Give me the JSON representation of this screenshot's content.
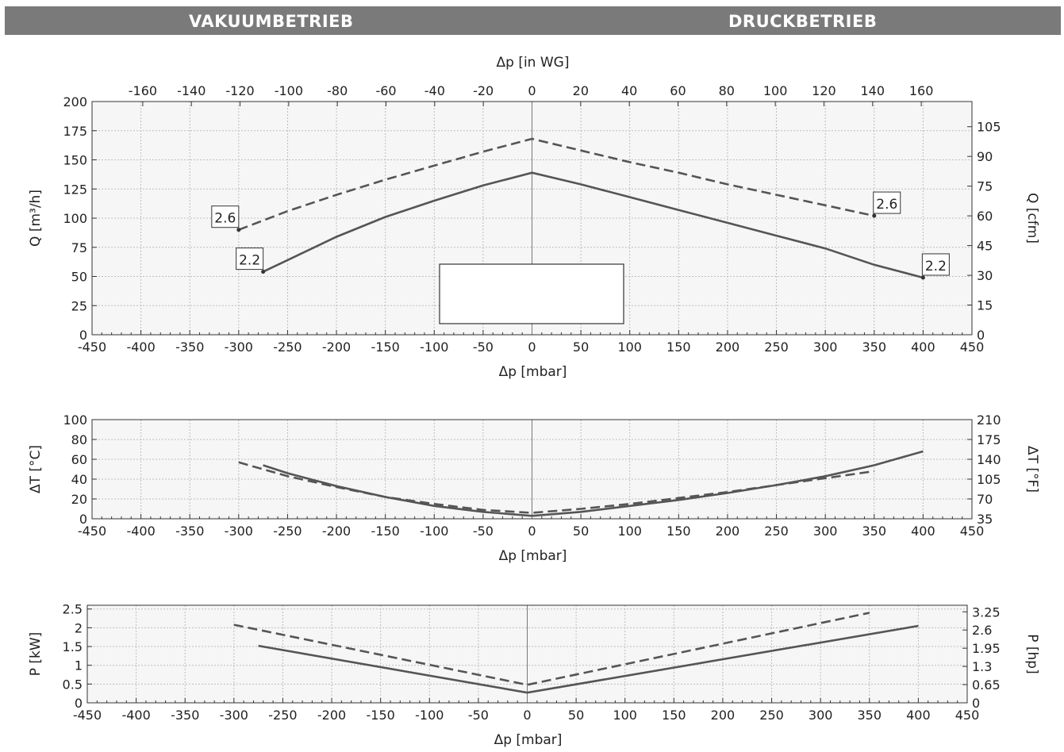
{
  "header": {
    "left_title": "VAKUUMBETRIEB",
    "right_title": "DRUCKBETRIEB"
  },
  "colors": {
    "banner": "#7a7a7a",
    "line": "#555555",
    "plot_bg": "#f6f6f6",
    "grid": "#bdbdbd"
  },
  "chart_data": [
    {
      "type": "line",
      "title": "",
      "xlabel": "Δp [mbar]",
      "ylabel": "Q [m³/h]",
      "xlabel_top": "Δp [in WG]",
      "ylabel_right": "Q [cfm]",
      "xlim": [
        -450,
        450
      ],
      "ylim": [
        0,
        200
      ],
      "x_ticks": [
        -450,
        -400,
        -350,
        -300,
        -250,
        -200,
        -150,
        -100,
        -50,
        0,
        50,
        100,
        150,
        200,
        250,
        300,
        350,
        400,
        450
      ],
      "y_ticks": [
        0,
        25,
        50,
        75,
        100,
        125,
        150,
        175,
        200
      ],
      "top_ticks": [
        -160,
        -140,
        -120,
        -100,
        -80,
        -60,
        -40,
        -20,
        0,
        20,
        40,
        60,
        80,
        100,
        120,
        140,
        160
      ],
      "right_ticks": [
        0,
        15,
        30,
        45,
        60,
        75,
        90,
        105
      ],
      "right_scale_max": 117.7,
      "grid": true,
      "series": [
        {
          "name": "2.6",
          "style": "dashed",
          "x": [
            -300,
            -250,
            -200,
            -150,
            -100,
            -50,
            0,
            50,
            100,
            150,
            200,
            250,
            300,
            350
          ],
          "y": [
            90,
            106,
            120,
            133,
            145,
            157,
            168,
            158,
            148,
            139,
            129,
            120,
            111,
            102
          ]
        },
        {
          "name": "2.2",
          "style": "solid",
          "x": [
            -275,
            -250,
            -200,
            -150,
            -100,
            -50,
            0,
            50,
            100,
            150,
            200,
            250,
            300,
            350,
            400
          ],
          "y": [
            54,
            64,
            84,
            101,
            115,
            128,
            139,
            129,
            118,
            107,
            96,
            85,
            74,
            60,
            49
          ]
        }
      ],
      "annotations": [
        {
          "text": "2.6",
          "x": -300,
          "y": 90
        },
        {
          "text": "2.2",
          "x": -275,
          "y": 54
        },
        {
          "text": "2.6",
          "x": 350,
          "y": 102
        },
        {
          "text": "2.2",
          "x": 400,
          "y": 49
        }
      ]
    },
    {
      "type": "line",
      "title": "",
      "xlabel": "Δp [mbar]",
      "ylabel": "ΔT [°C]",
      "ylabel_right": "ΔT [°F]",
      "xlim": [
        -450,
        450
      ],
      "ylim": [
        0,
        100
      ],
      "x_ticks": [
        -450,
        -400,
        -350,
        -300,
        -250,
        -200,
        -150,
        -100,
        -50,
        0,
        50,
        100,
        150,
        200,
        250,
        300,
        350,
        400,
        450
      ],
      "y_ticks": [
        0,
        20,
        40,
        60,
        80,
        100
      ],
      "right_ticks": [
        35,
        70,
        105,
        140,
        175,
        210
      ],
      "right_ticks_pos": [
        0,
        20,
        40,
        60,
        80,
        100
      ],
      "grid": true,
      "series": [
        {
          "name": "",
          "style": "dashed",
          "x": [
            -300,
            -250,
            -200,
            -150,
            -100,
            -50,
            0,
            50,
            100,
            150,
            200,
            250,
            300,
            350
          ],
          "y": [
            57,
            43,
            32,
            22,
            15,
            9,
            6,
            10,
            15,
            21,
            27,
            34,
            41,
            48
          ]
        },
        {
          "name": "",
          "style": "solid",
          "x": [
            -275,
            -250,
            -200,
            -150,
            -100,
            -50,
            0,
            50,
            100,
            150,
            200,
            250,
            300,
            350,
            400
          ],
          "y": [
            54,
            46,
            33,
            22,
            13,
            7,
            3,
            7,
            13,
            19,
            26,
            34,
            43,
            54,
            68
          ]
        }
      ]
    },
    {
      "type": "line",
      "title": "",
      "xlabel": "Δp [mbar]",
      "ylabel": "P [kW]",
      "ylabel_right": "P [hp]",
      "xlim": [
        -450,
        450
      ],
      "ylim": [
        0,
        2.6
      ],
      "x_ticks": [
        -450,
        -400,
        -350,
        -300,
        -250,
        -200,
        -150,
        -100,
        -50,
        0,
        50,
        100,
        150,
        200,
        250,
        300,
        350,
        400,
        450
      ],
      "y_ticks": [
        "0",
        "0.5",
        "1",
        "1.5",
        "2",
        "2.5"
      ],
      "y_ticks_pos": [
        0,
        0.5,
        1,
        1.5,
        2,
        2.5
      ],
      "right_ticks": [
        "0",
        "0.65",
        "1.3",
        "1.95",
        "2.6",
        "3.25"
      ],
      "right_ticks_pos": [
        0,
        0.485,
        0.97,
        1.455,
        1.94,
        2.425
      ],
      "grid": true,
      "series": [
        {
          "name": "",
          "style": "dashed",
          "x": [
            -300,
            0,
            350
          ],
          "y": [
            2.08,
            0.48,
            2.4
          ]
        },
        {
          "name": "",
          "style": "solid",
          "x": [
            -275,
            0,
            400
          ],
          "y": [
            1.52,
            0.27,
            2.05
          ]
        }
      ]
    }
  ]
}
